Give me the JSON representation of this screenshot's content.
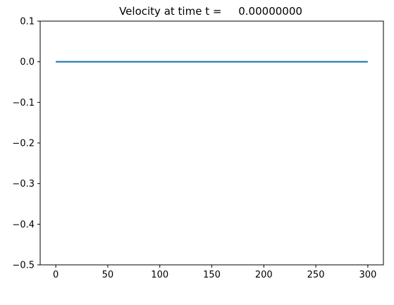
{
  "chart_data": {
    "type": "line",
    "title": "Velocity at time t =     0.00000000",
    "xlabel": "",
    "ylabel": "",
    "xlim": [
      -15,
      315
    ],
    "ylim": [
      -0.5,
      0.1
    ],
    "xticks": [
      0,
      50,
      100,
      150,
      200,
      250,
      300
    ],
    "xtick_labels": [
      "0",
      "50",
      "100",
      "150",
      "200",
      "250",
      "300"
    ],
    "yticks": [
      0.1,
      0.0,
      -0.1,
      -0.2,
      -0.3,
      -0.4,
      -0.5
    ],
    "ytick_labels": [
      "0.1",
      "0.0",
      "−0.1",
      "−0.2",
      "−0.3",
      "−0.4",
      "−0.5"
    ],
    "grid": false,
    "series": [
      {
        "x": [
          0,
          300
        ],
        "y": [
          0.0,
          0.0
        ],
        "color": "#1f77b4"
      }
    ]
  }
}
